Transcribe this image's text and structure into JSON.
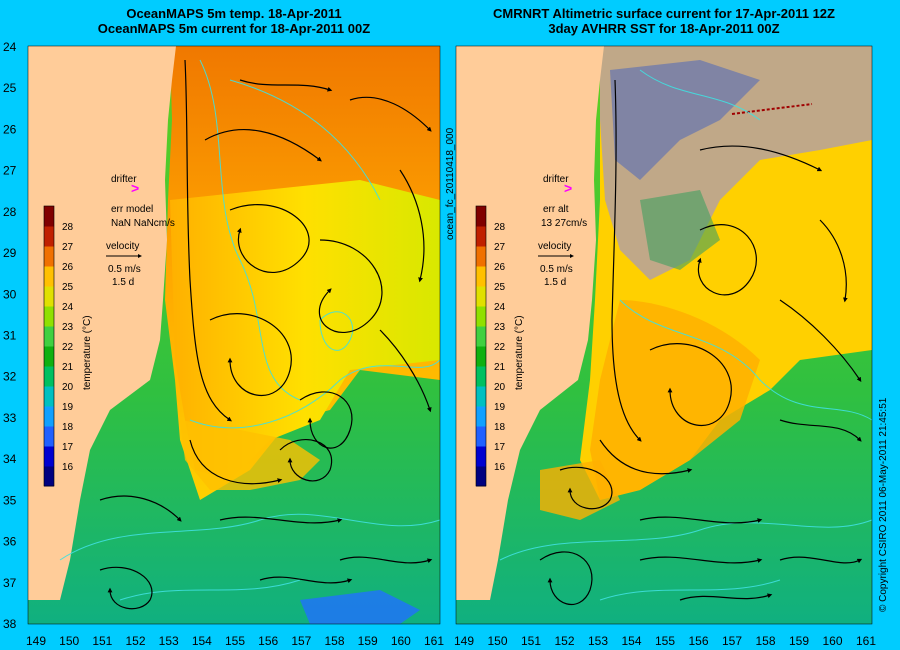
{
  "left_panel": {
    "title_line1": "OceanMAPS 5m temp. 18-Apr-2011",
    "title_line2": "OceanMAPS 5m current for 18-Apr-2011 00Z",
    "drifter_label": "drifter",
    "err_label": "err model",
    "err_value": "NaN NaNcm/s",
    "velocity_label": "velocity",
    "velocity_scale": "0.5 m/s",
    "velocity_time": "1.5 d"
  },
  "right_panel": {
    "title_line1": "CMRNRT Altimetric surface current for 17-Apr-2011 12Z",
    "title_line2": "3day AVHRR SST for 18-Apr-2011 00Z",
    "drifter_label": "drifter",
    "err_label": "err alt",
    "err_value": "13 27cm/s",
    "velocity_label": "velocity",
    "velocity_scale": "0.5 m/s",
    "velocity_time": "1.5 d"
  },
  "colorbar": {
    "label": "temperature (°C)",
    "ticks": [
      "16",
      "17",
      "18",
      "19",
      "20",
      "21",
      "22",
      "23",
      "24",
      "25",
      "26",
      "27",
      "28"
    ],
    "colors": [
      "#000080",
      "#0000d0",
      "#2060ff",
      "#10a0ff",
      "#00c0c0",
      "#00c060",
      "#10b010",
      "#40d040",
      "#90e000",
      "#e0e000",
      "#ffc000",
      "#f07000",
      "#c02000",
      "#800000"
    ]
  },
  "x_ticks": [
    "149",
    "150",
    "151",
    "152",
    "153",
    "154",
    "155",
    "156",
    "157",
    "158",
    "159",
    "160",
    "161"
  ],
  "y_ticks": [
    "24",
    "25",
    "26",
    "27",
    "28",
    "29",
    "30",
    "31",
    "32",
    "33",
    "34",
    "35",
    "36",
    "37",
    "38"
  ],
  "middle_label": "ocean_fc_20110418_000",
  "right_side_label": "© Copyright CSIRO 2011   06-May-2011 21:45:51",
  "colors": {
    "background": "#00ccff",
    "land": "#ffcc99",
    "cloud": "#c0a888",
    "drifter": "#ff00ff"
  }
}
